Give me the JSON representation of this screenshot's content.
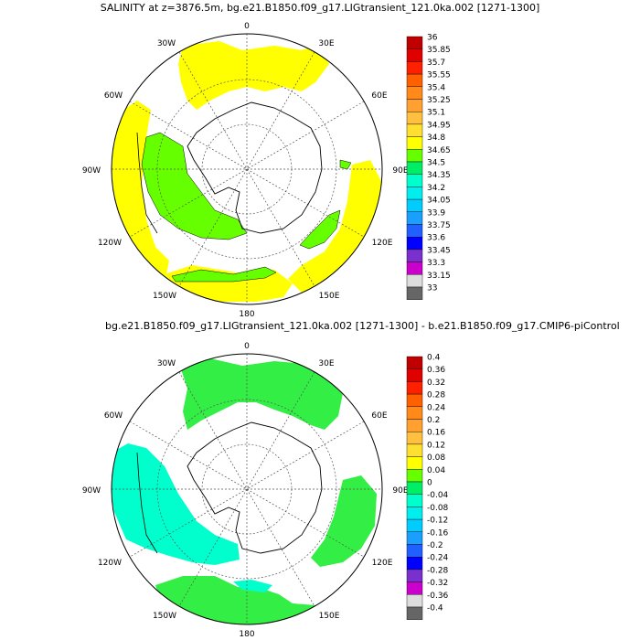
{
  "panels": [
    {
      "id": "top",
      "title": "SALINITY at z=3876.5m, bg.e21.B1850.f09_g17.LIGtransient_121.0ka.002 [1271-1300]",
      "lon_labels": [
        "0",
        "30E",
        "60E",
        "90E",
        "120E",
        "150E",
        "180",
        "150W",
        "120W",
        "90W",
        "60W",
        "30W"
      ],
      "colorbar": {
        "labels": [
          "36",
          "35.85",
          "35.7",
          "35.55",
          "35.4",
          "35.25",
          "35.1",
          "34.95",
          "34.8",
          "34.65",
          "34.5",
          "34.35",
          "34.2",
          "34.05",
          "33.9",
          "33.75",
          "33.6",
          "33.45",
          "33.3",
          "33.15",
          "33"
        ],
        "colors": [
          "#c00000",
          "#e00000",
          "#ff2000",
          "#ff6000",
          "#ff8a1a",
          "#ffa030",
          "#ffc040",
          "#ffe030",
          "#ffff00",
          "#66ff00",
          "#00ee66",
          "#00ffcc",
          "#00eeee",
          "#00ccff",
          "#1a9fff",
          "#2060ff",
          "#0000ff",
          "#7a30cc",
          "#cc00cc",
          "#dddddd",
          "#666666"
        ]
      }
    },
    {
      "id": "bottom",
      "title": "bg.e21.B1850.f09_g17.LIGtransient_121.0ka.002 [1271-1300] - b.e21.B1850.f09_g17.CMIP6-piControl",
      "lon_labels": [
        "0",
        "30E",
        "60E",
        "90E",
        "120E",
        "150E",
        "180",
        "150W",
        "120W",
        "90W",
        "60W",
        "30W"
      ],
      "colorbar": {
        "labels": [
          "0.4",
          "0.36",
          "0.32",
          "0.28",
          "0.24",
          "0.2",
          "0.16",
          "0.12",
          "0.08",
          "0.04",
          "0",
          "-0.04",
          "-0.08",
          "-0.12",
          "-0.16",
          "-0.2",
          "-0.24",
          "-0.28",
          "-0.32",
          "-0.36",
          "-0.4"
        ],
        "colors": [
          "#c00000",
          "#e00000",
          "#ff2000",
          "#ff6000",
          "#ff8a1a",
          "#ffa030",
          "#ffc040",
          "#ffe030",
          "#ffff00",
          "#66ff00",
          "#00ee66",
          "#00ffcc",
          "#00eeee",
          "#00ccff",
          "#1a9fff",
          "#2060ff",
          "#0000ff",
          "#7a30cc",
          "#cc00cc",
          "#dddddd",
          "#666666"
        ]
      }
    }
  ],
  "colors": {
    "yellow_region": "#ffff00",
    "green_region": "#66ff00",
    "mid_green_region": "#33ee44",
    "cyan_region": "#00ffcc",
    "coast": "#000000",
    "grid": "#555555"
  }
}
